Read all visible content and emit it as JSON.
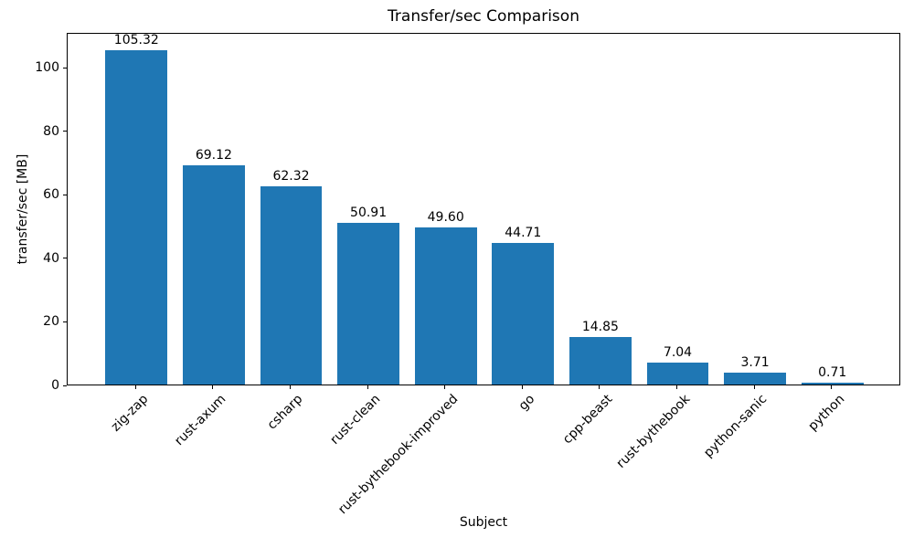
{
  "chart_data": {
    "type": "bar",
    "title": "Transfer/sec Comparison",
    "xlabel": "Subject",
    "ylabel": "transfer/sec [MB]",
    "categories": [
      "zig-zap",
      "rust-axum",
      "csharp",
      "rust-clean",
      "rust-bythebook-improved",
      "go",
      "cpp-beast",
      "rust-bythebook",
      "python-sanic",
      "python"
    ],
    "values": [
      105.32,
      69.12,
      62.32,
      50.91,
      49.6,
      44.71,
      14.85,
      7.04,
      3.71,
      0.71
    ],
    "value_labels": [
      "105.32",
      "69.12",
      "62.32",
      "50.91",
      "49.60",
      "44.71",
      "14.85",
      "7.04",
      "3.71",
      "0.71"
    ],
    "yticks": [
      0,
      20,
      40,
      60,
      80,
      100
    ],
    "ytick_labels": [
      "0",
      "20",
      "40",
      "60",
      "80",
      "100"
    ],
    "ylim": [
      0,
      111
    ],
    "bar_color": "#1f77b4",
    "background_color": "#ffffff",
    "text_color": "#000000",
    "spine_color": "#000000",
    "grid": false,
    "legend": null,
    "tick_rotation": 45
  }
}
